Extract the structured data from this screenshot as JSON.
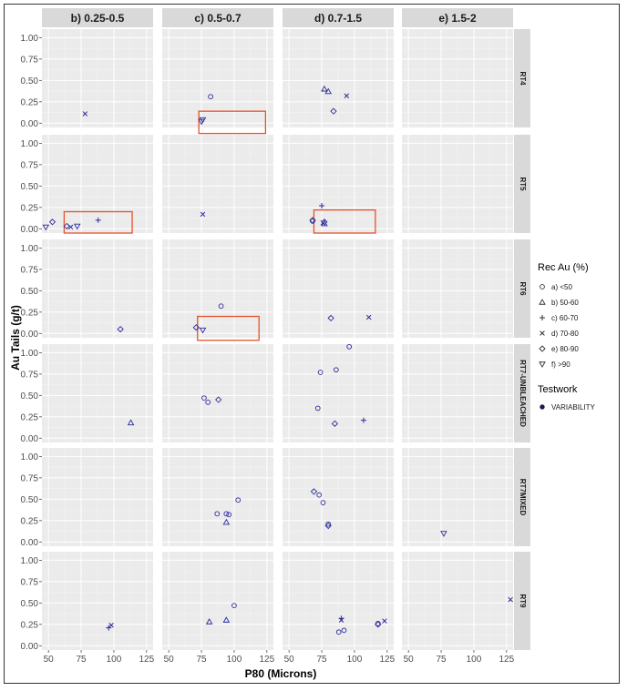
{
  "chart_data": {
    "type": "scatter",
    "title": "",
    "xlabel": "P80 (Microns)",
    "ylabel": "Au Tails (g/t)",
    "xlim": [
      45,
      130
    ],
    "ylim": [
      -0.05,
      1.1
    ],
    "x_ticks": [
      "50",
      "75",
      "100",
      "125"
    ],
    "y_ticks": [
      "0.00",
      "0.25",
      "0.50",
      "0.75",
      "1.00"
    ],
    "columns": [
      "b) 0.25-0.5",
      "c) 0.5-0.7",
      "d) 0.7-1.5",
      "e) 1.5-2"
    ],
    "rows": [
      "RT4",
      "RT5",
      "RT6",
      "RT7-UNBLEACHED",
      "RT7MIXED",
      "RT9"
    ],
    "grid": true,
    "legend": {
      "placement": "right",
      "title": "Rec Au (%)",
      "entries": [
        {
          "key": "a",
          "label": "a) <50",
          "marker": "circle"
        },
        {
          "key": "b",
          "label": "b) 50-60",
          "marker": "triangle"
        },
        {
          "key": "c",
          "label": "c) 60-70",
          "marker": "plus"
        },
        {
          "key": "d",
          "label": "d) 70-80",
          "marker": "cross"
        },
        {
          "key": "e",
          "label": "e) 80-90",
          "marker": "diamond"
        },
        {
          "key": "f",
          "label": "f) >90",
          "marker": "triangle-down"
        }
      ],
      "testwork_title": "Testwork",
      "testwork_entries": [
        {
          "label": "VARIABILITY",
          "marker": "filled-circle"
        }
      ]
    },
    "point_color": "#2b2b9a",
    "highlight_color": "#e8502a",
    "points": [
      {
        "row": 0,
        "col": 0,
        "x": 78,
        "y": 0.11,
        "s": "d"
      },
      {
        "row": 0,
        "col": 1,
        "x": 82,
        "y": 0.31,
        "s": "a"
      },
      {
        "row": 0,
        "col": 1,
        "x": 76,
        "y": 0.04,
        "s": "f"
      },
      {
        "row": 0,
        "col": 1,
        "x": 75,
        "y": 0.02,
        "s": "f"
      },
      {
        "row": 0,
        "col": 2,
        "x": 77,
        "y": 0.4,
        "s": "b"
      },
      {
        "row": 0,
        "col": 2,
        "x": 80,
        "y": 0.37,
        "s": "b"
      },
      {
        "row": 0,
        "col": 2,
        "x": 94,
        "y": 0.32,
        "s": "d"
      },
      {
        "row": 0,
        "col": 2,
        "x": 84,
        "y": 0.14,
        "s": "e"
      },
      {
        "row": 1,
        "col": 0,
        "x": 48,
        "y": 0.02,
        "s": "f"
      },
      {
        "row": 1,
        "col": 0,
        "x": 53,
        "y": 0.08,
        "s": "e"
      },
      {
        "row": 1,
        "col": 0,
        "x": 64,
        "y": 0.03,
        "s": "e"
      },
      {
        "row": 1,
        "col": 0,
        "x": 67,
        "y": 0.02,
        "s": "d"
      },
      {
        "row": 1,
        "col": 0,
        "x": 72,
        "y": 0.03,
        "s": "f"
      },
      {
        "row": 1,
        "col": 0,
        "x": 88,
        "y": 0.1,
        "s": "c"
      },
      {
        "row": 1,
        "col": 1,
        "x": 76,
        "y": 0.17,
        "s": "d"
      },
      {
        "row": 1,
        "col": 2,
        "x": 68,
        "y": 0.1,
        "s": "e"
      },
      {
        "row": 1,
        "col": 2,
        "x": 68,
        "y": 0.09,
        "s": "a"
      },
      {
        "row": 1,
        "col": 2,
        "x": 75,
        "y": 0.27,
        "s": "c"
      },
      {
        "row": 1,
        "col": 2,
        "x": 76,
        "y": 0.07,
        "s": "d"
      },
      {
        "row": 1,
        "col": 2,
        "x": 77,
        "y": 0.06,
        "s": "b"
      },
      {
        "row": 1,
        "col": 2,
        "x": 77,
        "y": 0.08,
        "s": "e"
      },
      {
        "row": 2,
        "col": 0,
        "x": 105,
        "y": 0.05,
        "s": "e"
      },
      {
        "row": 2,
        "col": 1,
        "x": 90,
        "y": 0.32,
        "s": "a"
      },
      {
        "row": 2,
        "col": 1,
        "x": 71,
        "y": 0.07,
        "s": "e"
      },
      {
        "row": 2,
        "col": 1,
        "x": 76,
        "y": 0.04,
        "s": "f"
      },
      {
        "row": 2,
        "col": 2,
        "x": 82,
        "y": 0.18,
        "s": "e"
      },
      {
        "row": 2,
        "col": 2,
        "x": 111,
        "y": 0.19,
        "s": "d"
      },
      {
        "row": 3,
        "col": 0,
        "x": 113,
        "y": 0.18,
        "s": "b"
      },
      {
        "row": 3,
        "col": 1,
        "x": 77,
        "y": 0.47,
        "s": "a"
      },
      {
        "row": 3,
        "col": 1,
        "x": 80,
        "y": 0.42,
        "s": "a"
      },
      {
        "row": 3,
        "col": 1,
        "x": 88,
        "y": 0.45,
        "s": "e"
      },
      {
        "row": 3,
        "col": 2,
        "x": 96,
        "y": 1.07,
        "s": "a"
      },
      {
        "row": 3,
        "col": 2,
        "x": 86,
        "y": 0.8,
        "s": "a"
      },
      {
        "row": 3,
        "col": 2,
        "x": 74,
        "y": 0.77,
        "s": "a"
      },
      {
        "row": 3,
        "col": 2,
        "x": 72,
        "y": 0.35,
        "s": "a"
      },
      {
        "row": 3,
        "col": 2,
        "x": 85,
        "y": 0.17,
        "s": "e"
      },
      {
        "row": 3,
        "col": 2,
        "x": 107,
        "y": 0.21,
        "s": "c"
      },
      {
        "row": 4,
        "col": 1,
        "x": 103,
        "y": 0.49,
        "s": "a"
      },
      {
        "row": 4,
        "col": 1,
        "x": 87,
        "y": 0.33,
        "s": "a"
      },
      {
        "row": 4,
        "col": 1,
        "x": 94,
        "y": 0.33,
        "s": "a"
      },
      {
        "row": 4,
        "col": 1,
        "x": 96,
        "y": 0.32,
        "s": "a"
      },
      {
        "row": 4,
        "col": 1,
        "x": 94,
        "y": 0.23,
        "s": "b"
      },
      {
        "row": 4,
        "col": 2,
        "x": 69,
        "y": 0.59,
        "s": "e"
      },
      {
        "row": 4,
        "col": 2,
        "x": 73,
        "y": 0.55,
        "s": "a"
      },
      {
        "row": 4,
        "col": 2,
        "x": 76,
        "y": 0.46,
        "s": "a"
      },
      {
        "row": 4,
        "col": 2,
        "x": 80,
        "y": 0.19,
        "s": "e"
      },
      {
        "row": 4,
        "col": 2,
        "x": 80,
        "y": 0.21,
        "s": "a"
      },
      {
        "row": 4,
        "col": 3,
        "x": 77,
        "y": 0.1,
        "s": "f"
      },
      {
        "row": 5,
        "col": 0,
        "x": 96,
        "y": 0.21,
        "s": "c"
      },
      {
        "row": 5,
        "col": 0,
        "x": 98,
        "y": 0.24,
        "s": "d"
      },
      {
        "row": 5,
        "col": 1,
        "x": 100,
        "y": 0.47,
        "s": "a"
      },
      {
        "row": 5,
        "col": 1,
        "x": 81,
        "y": 0.28,
        "s": "b"
      },
      {
        "row": 5,
        "col": 1,
        "x": 94,
        "y": 0.3,
        "s": "b"
      },
      {
        "row": 5,
        "col": 2,
        "x": 90,
        "y": 0.32,
        "s": "c"
      },
      {
        "row": 5,
        "col": 2,
        "x": 90,
        "y": 0.3,
        "s": "d"
      },
      {
        "row": 5,
        "col": 2,
        "x": 88,
        "y": 0.16,
        "s": "a"
      },
      {
        "row": 5,
        "col": 2,
        "x": 92,
        "y": 0.18,
        "s": "a"
      },
      {
        "row": 5,
        "col": 2,
        "x": 118,
        "y": 0.25,
        "s": "e"
      },
      {
        "row": 5,
        "col": 2,
        "x": 118,
        "y": 0.26,
        "s": "a"
      },
      {
        "row": 5,
        "col": 2,
        "x": 123,
        "y": 0.29,
        "s": "d"
      },
      {
        "row": 5,
        "col": 3,
        "x": 128,
        "y": 0.54,
        "s": "d"
      }
    ],
    "highlight_boxes": [
      {
        "row": 0,
        "col": 1,
        "x0": 73,
        "x1": 124,
        "y0": -0.12,
        "y1": 0.14
      },
      {
        "row": 1,
        "col": 0,
        "x0": 62,
        "x1": 114,
        "y0": -0.05,
        "y1": 0.2
      },
      {
        "row": 1,
        "col": 2,
        "x0": 69,
        "x1": 116,
        "y0": -0.05,
        "y1": 0.22
      },
      {
        "row": 2,
        "col": 1,
        "x0": 72,
        "x1": 119,
        "y0": -0.08,
        "y1": 0.2
      }
    ]
  }
}
